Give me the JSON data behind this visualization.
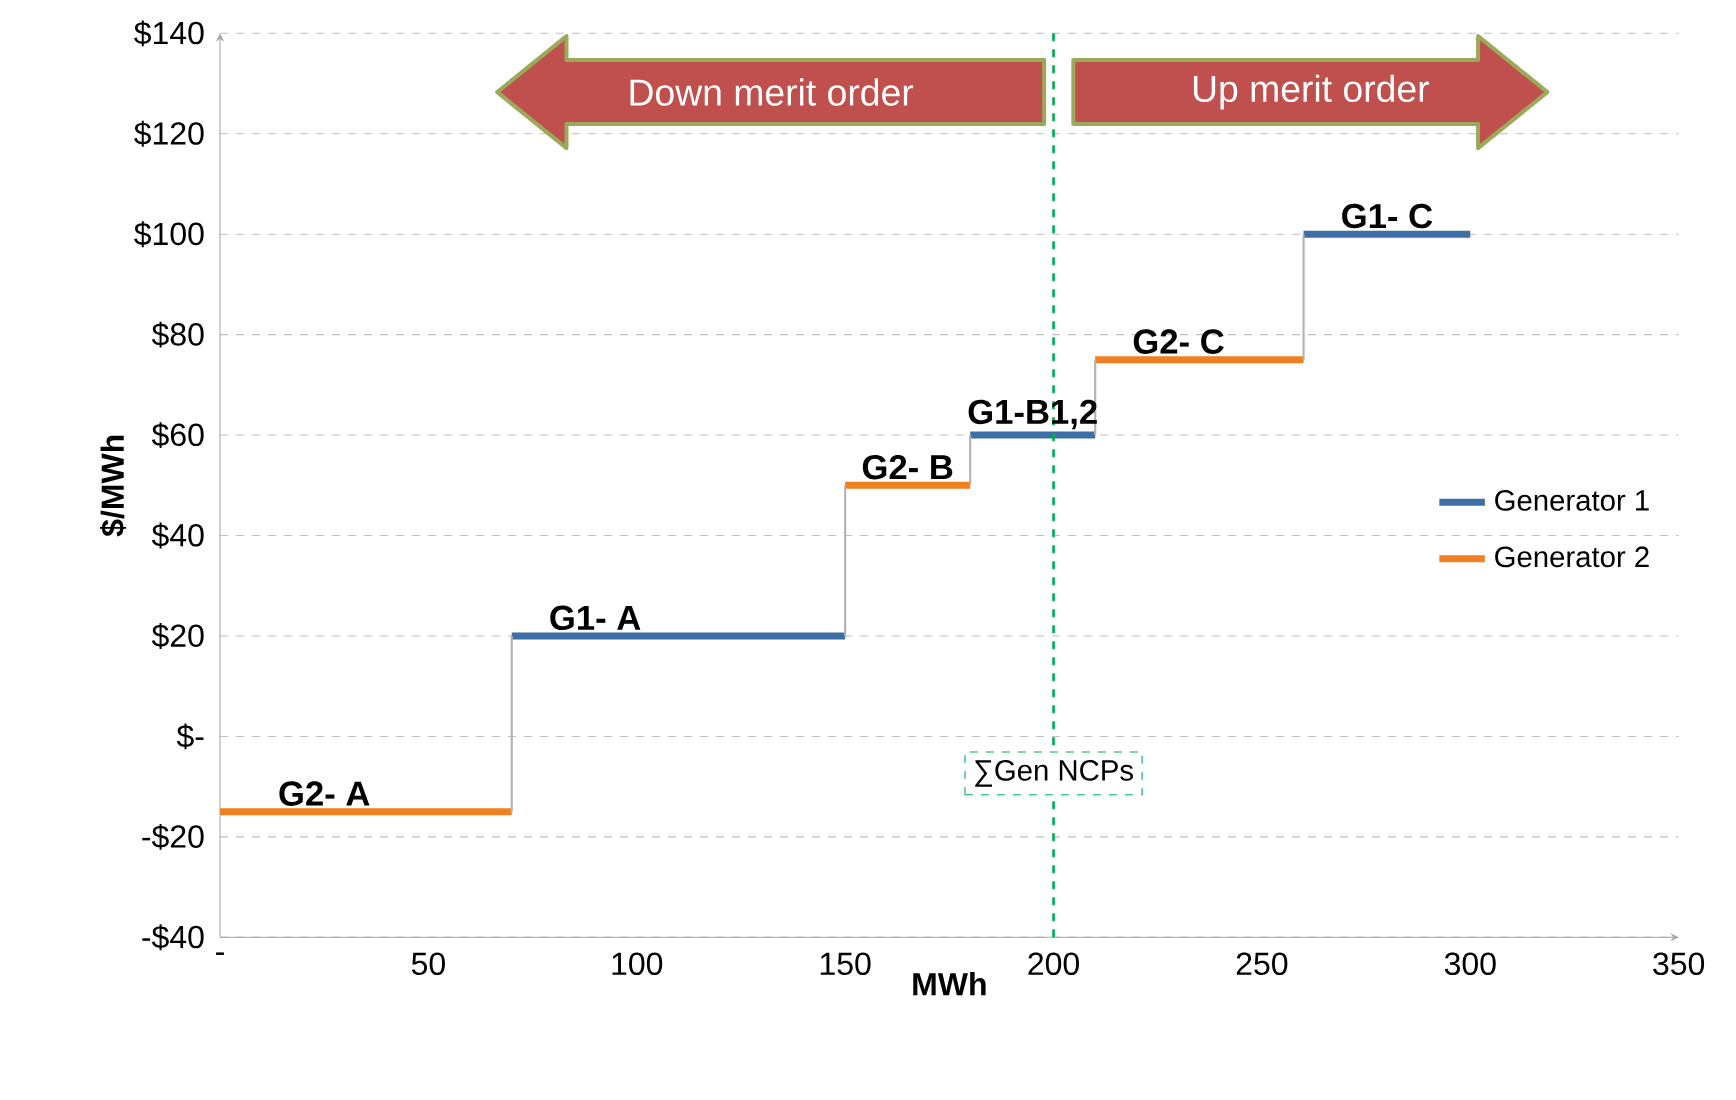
{
  "chart_data": {
    "type": "line",
    "xlabel": "MWh",
    "ylabel": "$/MWh",
    "xlim": [
      0,
      350
    ],
    "ylim": [
      -40,
      140
    ],
    "xticks": [
      {
        "value": 0,
        "label": "-"
      },
      50,
      100,
      150,
      200,
      250,
      300,
      350
    ],
    "yticks": [
      {
        "value": -40,
        "label": "-$40"
      },
      {
        "value": -20,
        "label": "-$20"
      },
      {
        "value": 0,
        "label": "$-"
      },
      {
        "value": 20,
        "label": "$20"
      },
      {
        "value": 40,
        "label": "$40"
      },
      {
        "value": 60,
        "label": "$60"
      },
      {
        "value": 80,
        "label": "$80"
      },
      {
        "value": 100,
        "label": "$100"
      },
      {
        "value": 120,
        "label": "$120"
      },
      {
        "value": 140,
        "label": "$140"
      }
    ],
    "grid": "y",
    "legend": "right",
    "line_style": "solid",
    "marker": "none",
    "series": [
      {
        "name": "Generator 1",
        "color": "#3d6fa6",
        "x": [
          70,
          150,
          165,
          180,
          210,
          235,
          260,
          300
        ],
        "values": [
          20,
          20,
          null,
          60,
          60,
          null,
          100,
          100
        ]
      },
      {
        "name": "Generator 2",
        "color": "#f07f22",
        "x": [
          0,
          70,
          110,
          150,
          180,
          195,
          210,
          260
        ],
        "values": [
          -15,
          -15,
          null,
          50,
          50,
          null,
          75,
          75
        ]
      }
    ],
    "ref_lines": [
      {
        "axis": "x",
        "value": 200,
        "label": "∑Gen NCPs",
        "color": "#00b050",
        "line_style": "dashed"
      }
    ],
    "annotations": [
      {
        "text": "G2- A",
        "x": 25,
        "y": -15
      },
      {
        "text": "G1- A",
        "x": 90,
        "y": 20
      },
      {
        "text": "G2- B",
        "x": 165,
        "y": 50
      },
      {
        "text": "G1-B1,2",
        "x": 195,
        "y": 60
      },
      {
        "text": "G2- C",
        "x": 230,
        "y": 75
      },
      {
        "text": "G1- C",
        "x": 280,
        "y": 100
      },
      "Down merit order",
      "Up merit order"
    ]
  }
}
